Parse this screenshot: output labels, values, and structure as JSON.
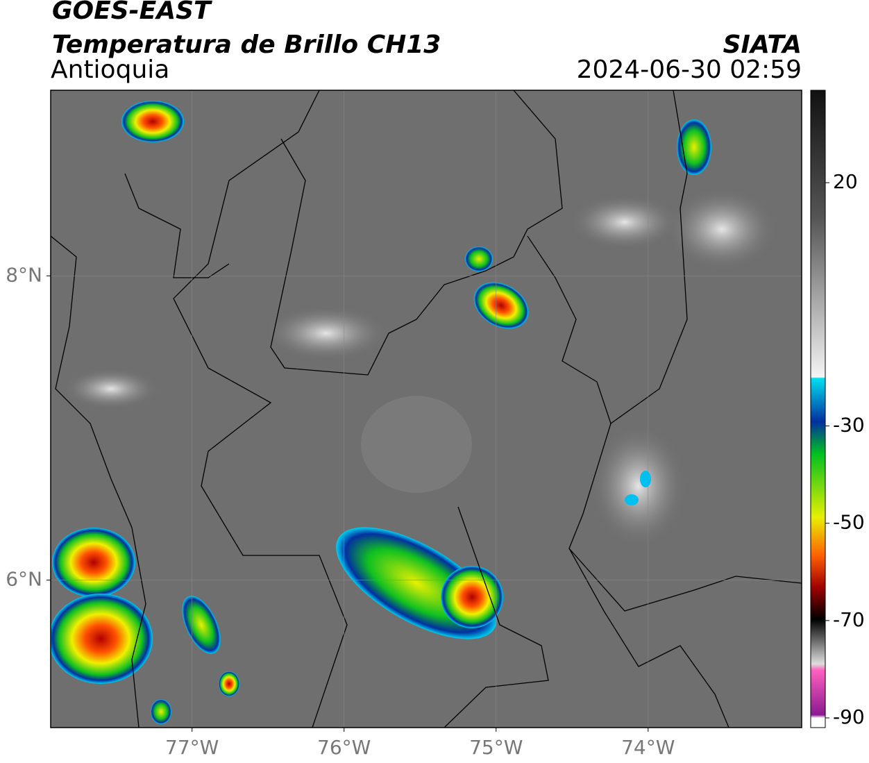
{
  "header": {
    "title": "GOES-EAST",
    "subtitle": "Temperatura de Brillo CH13",
    "region": "Antioquia",
    "source": "SIATA",
    "datetime": "2024-06-30 02:59"
  },
  "map": {
    "xlim": [
      -77.93,
      -72.99
    ],
    "ylim": [
      5.03,
      9.22
    ],
    "xticks": [
      {
        "value": -77,
        "label": "77°W"
      },
      {
        "value": -76,
        "label": "76°W"
      },
      {
        "value": -75,
        "label": "75°W"
      },
      {
        "value": -74,
        "label": "74°W"
      }
    ],
    "yticks": [
      {
        "value": 8,
        "label": "8°N"
      },
      {
        "value": 6,
        "label": "6°N"
      }
    ],
    "grid": true
  },
  "colorbar": {
    "lim": [
      -92,
      39
    ],
    "ticks": [
      20,
      -30,
      -50,
      -70,
      -90
    ]
  }
}
